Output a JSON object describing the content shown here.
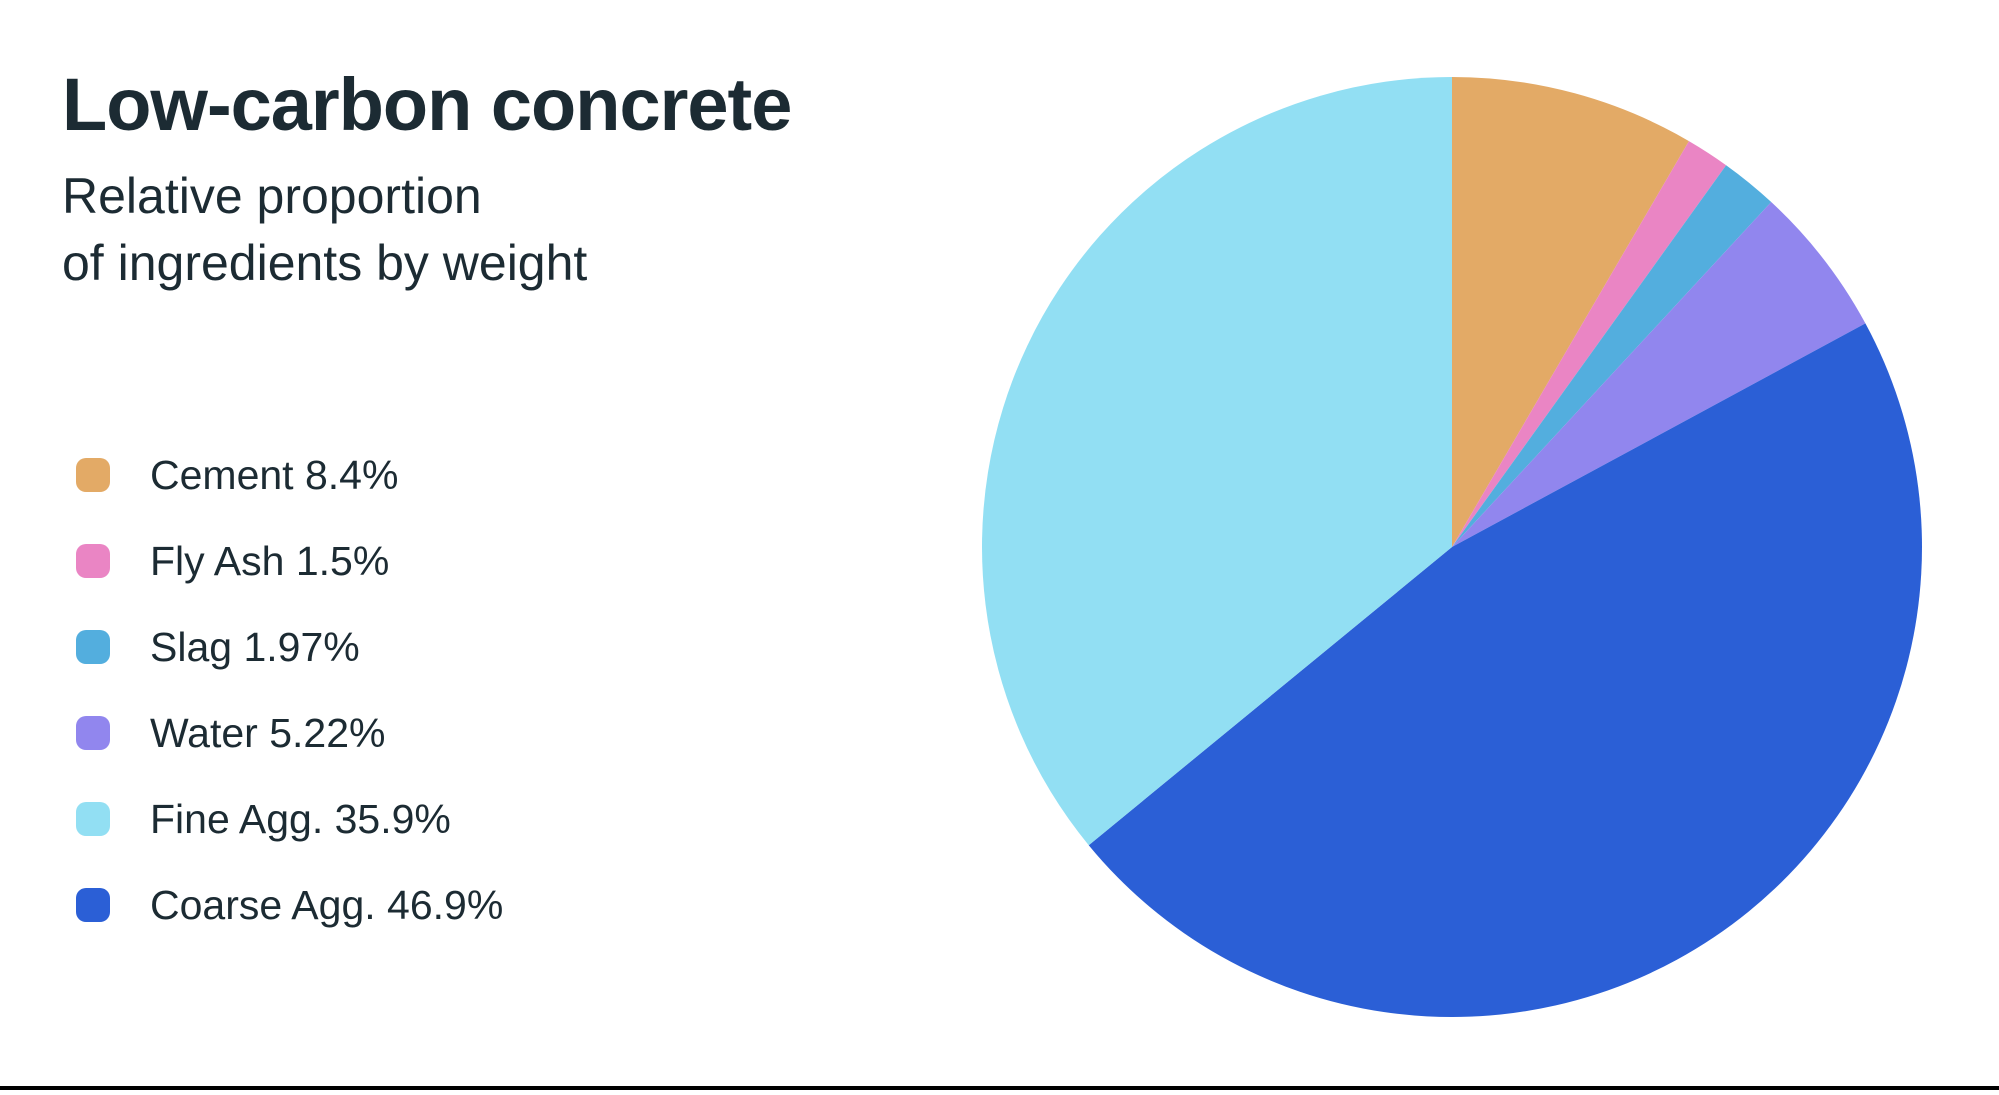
{
  "page": {
    "background_color": "#FFFFFF",
    "footer_bar_color": "#000000"
  },
  "header": {
    "title": "Low-carbon concrete",
    "subtitle_line1": "Relative proportion",
    "subtitle_line2": "of ingredients by weight"
  },
  "legend": {
    "position": "left",
    "items": [
      {
        "name": "Cement",
        "label": "Cement 8.4%",
        "color": "#E3AA66"
      },
      {
        "name": "Fly Ash",
        "label": "Fly Ash 1.5%",
        "color": "#EA85C4"
      },
      {
        "name": "Slag",
        "label": "Slag 1.97%",
        "color": "#53AEDE"
      },
      {
        "name": "Water",
        "label": "Water 5.22%",
        "color": "#9186EE"
      },
      {
        "name": "Fine Agg.",
        "label": "Fine Agg. 35.9%",
        "color": "#92DFF3"
      },
      {
        "name": "Coarse Agg.",
        "label": "Coarse Agg. 46.9%",
        "color": "#2B5FD6"
      }
    ]
  },
  "chart_data": {
    "type": "pie",
    "title": "Low-carbon concrete",
    "subtitle": "Relative proportion of ingredients by weight",
    "categories": [
      "Cement",
      "Fly Ash",
      "Slag",
      "Water",
      "Fine Agg.",
      "Coarse Agg."
    ],
    "values": [
      8.4,
      1.5,
      1.97,
      5.22,
      35.9,
      46.9
    ],
    "labels": [
      "Cement 8.4%",
      "Fly Ash 1.5%",
      "Slag 1.97%",
      "Water 5.22%",
      "Fine Agg. 35.9%",
      "Coarse Agg. 46.9%"
    ],
    "colors": [
      "#E3AA66",
      "#EA85C4",
      "#53AEDE",
      "#9186EE",
      "#92DFF3",
      "#2B5FD6"
    ],
    "unit": "percent by weight",
    "start_angle_deg": 0,
    "direction": "clockwise",
    "draw_order": [
      0,
      1,
      2,
      3,
      5,
      4
    ],
    "legend_position": "left",
    "data_labels": "none"
  }
}
